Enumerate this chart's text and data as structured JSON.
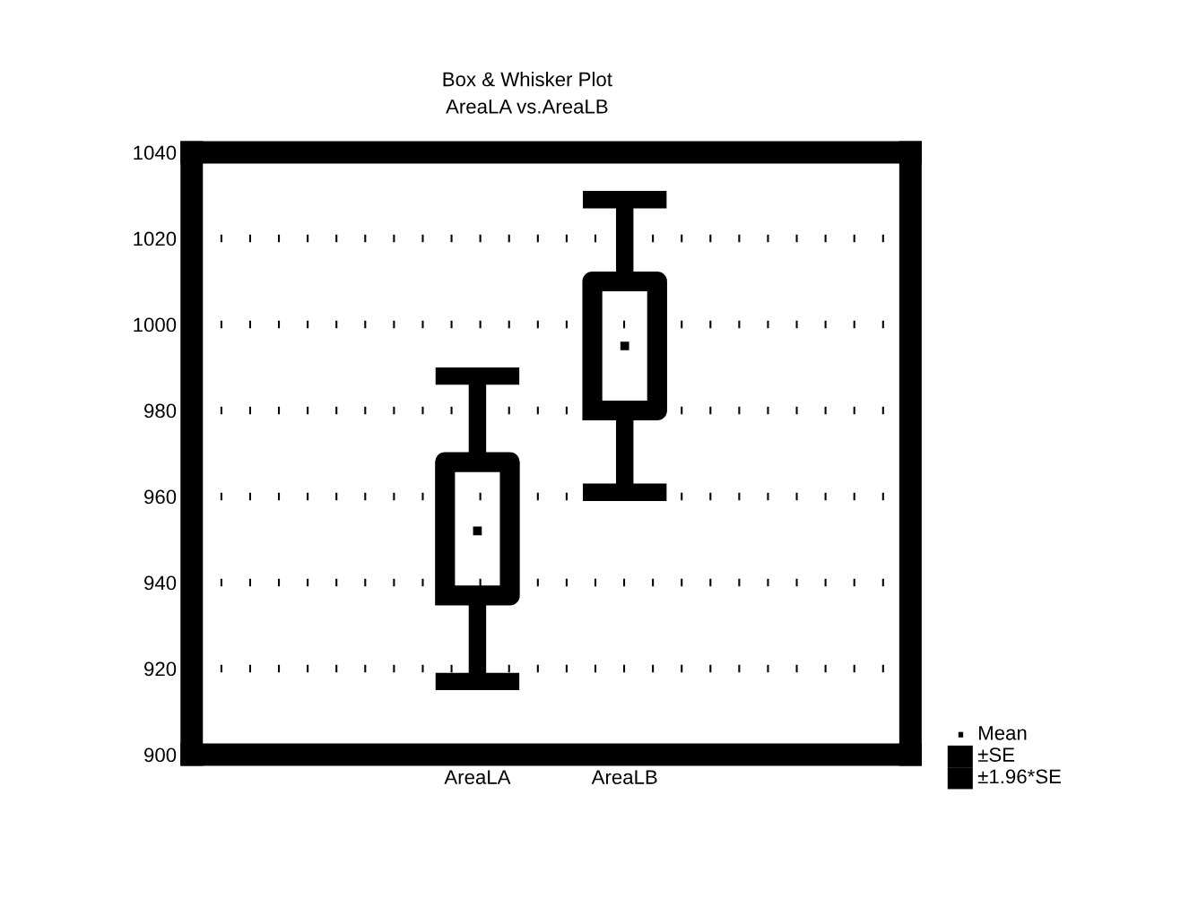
{
  "chart_data": {
    "type": "box",
    "title": "Box & Whisker Plot",
    "subtitle": "AreaLA vs.AreaLB",
    "categories": [
      "AreaLA",
      "AreaLB"
    ],
    "boxes": [
      {
        "low": 917,
        "q1": 937,
        "median": 952,
        "q3": 968,
        "high": 988
      },
      {
        "low": 961,
        "q1": 980,
        "median": 995,
        "q3": 1010,
        "high": 1029
      }
    ],
    "annotations": [
      "Mean",
      "±SE",
      "±1.96*SE"
    ],
    "color": "#000000",
    "ylim": [
      900,
      1040
    ],
    "yticks": [
      900,
      920,
      940,
      960,
      980,
      1000,
      1020,
      1040
    ],
    "grid": "y"
  }
}
